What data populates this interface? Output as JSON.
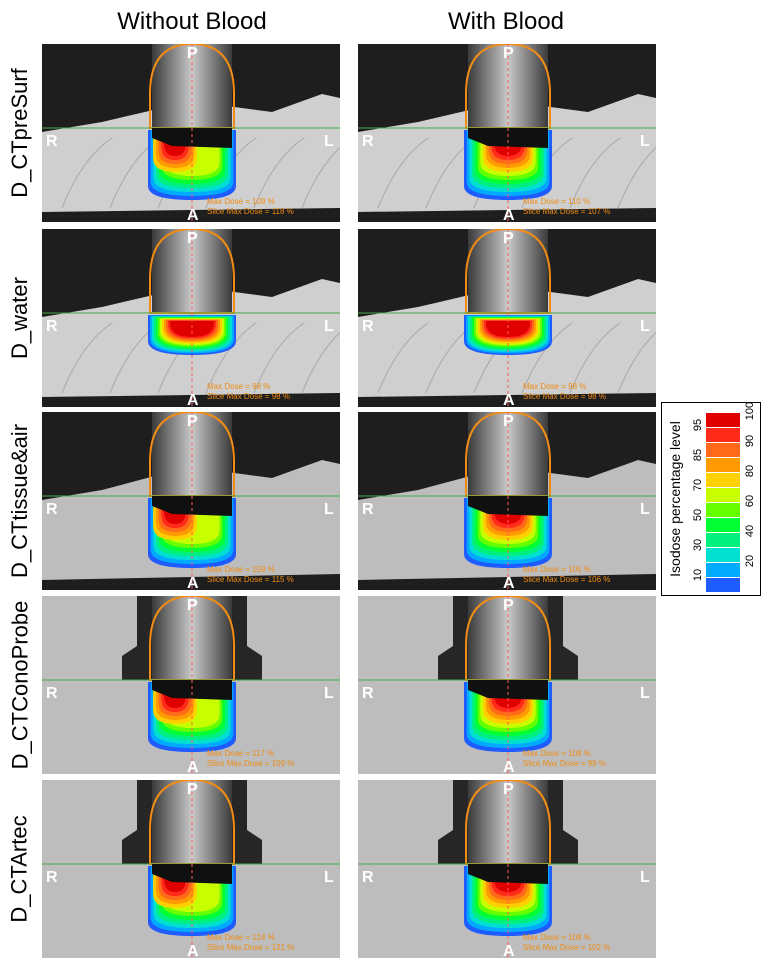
{
  "columns": [
    "Without Blood",
    "With Blood"
  ],
  "rows": [
    {
      "label": "D_CTpreSurf",
      "style": "ct",
      "panels": [
        {
          "max_dose": "Max Dose = 109 %",
          "slice_max_dose": "Slice Max Dose = 118 %",
          "cavity": true,
          "hot": "spot"
        },
        {
          "max_dose": "Max Dose = 110 %",
          "slice_max_dose": "Slice Max Dose = 107 %",
          "cavity": true,
          "hot": "band"
        }
      ]
    },
    {
      "label": "D_water",
      "style": "ct",
      "panels": [
        {
          "max_dose": "Max Dose = 98 %",
          "slice_max_dose": "Slice Max Dose = 98 %",
          "cavity": false,
          "hot": "uniform"
        },
        {
          "max_dose": "Max Dose = 98 %",
          "slice_max_dose": "Slice Max Dose = 98 %",
          "cavity": false,
          "hot": "uniform"
        }
      ]
    },
    {
      "label": "D_CTtissue&air",
      "style": "flat",
      "panels": [
        {
          "max_dose": "Max Dose = 109 %",
          "slice_max_dose": "Slice Max Dose = 115 %",
          "cavity": true,
          "hot": "spot"
        },
        {
          "max_dose": "Max Dose = 105 %",
          "slice_max_dose": "Slice Max Dose = 106 %",
          "cavity": true,
          "hot": "band"
        }
      ]
    },
    {
      "label": "D_CTConoProbe",
      "style": "probe",
      "panels": [
        {
          "max_dose": "Max Dose = 117 %",
          "slice_max_dose": "Slice Max Dose = 109 %",
          "cavity": true,
          "hot": "spot"
        },
        {
          "max_dose": "Max Dose = 109 %",
          "slice_max_dose": "Slice Max Dose = 99 %",
          "cavity": true,
          "hot": "band"
        }
      ]
    },
    {
      "label": "D_CTArtec",
      "style": "probe",
      "panels": [
        {
          "max_dose": "Max Dose = 124 %",
          "slice_max_dose": "Slice Max Dose = 121 %",
          "cavity": true,
          "hot": "spot"
        },
        {
          "max_dose": "Max Dose = 109 %",
          "slice_max_dose": "Slice Max Dose = 102 %",
          "cavity": true,
          "hot": "band"
        }
      ]
    }
  ],
  "orientation": {
    "posterior": "P",
    "anterior": "A",
    "right": "R",
    "left": "L"
  },
  "legend": {
    "title": "Isodose percentage level",
    "levels": [
      {
        "level": "100",
        "color": "#e00000"
      },
      {
        "level": "95",
        "color": "#ff2a1a"
      },
      {
        "level": "90",
        "color": "#ff6a1a"
      },
      {
        "level": "85",
        "color": "#ff9a00"
      },
      {
        "level": "80",
        "color": "#ffd000"
      },
      {
        "level": "70",
        "color": "#c8ff00"
      },
      {
        "level": "60",
        "color": "#66ff00"
      },
      {
        "level": "50",
        "color": "#00ff33"
      },
      {
        "level": "40",
        "color": "#00f080"
      },
      {
        "level": "30",
        "color": "#00e0d0"
      },
      {
        "level": "20",
        "color": "#00aaff"
      },
      {
        "level": "10",
        "color": "#1e5cff"
      }
    ],
    "left_labels": [
      "95",
      "85",
      "70",
      "50",
      "30",
      "10"
    ],
    "right_labels": [
      "100",
      "90",
      "80",
      "60",
      "40",
      "20"
    ]
  },
  "colors": {
    "applicator_outline": "#f08c14",
    "ct_background": "#1e1e1e",
    "tissue": "#cfcfcf",
    "tissue_flat": "#bdbdbd",
    "probe": "#262626",
    "dose_text": "#f08c14",
    "midline": "#ff5a5a",
    "horizon": "#44aa44"
  }
}
